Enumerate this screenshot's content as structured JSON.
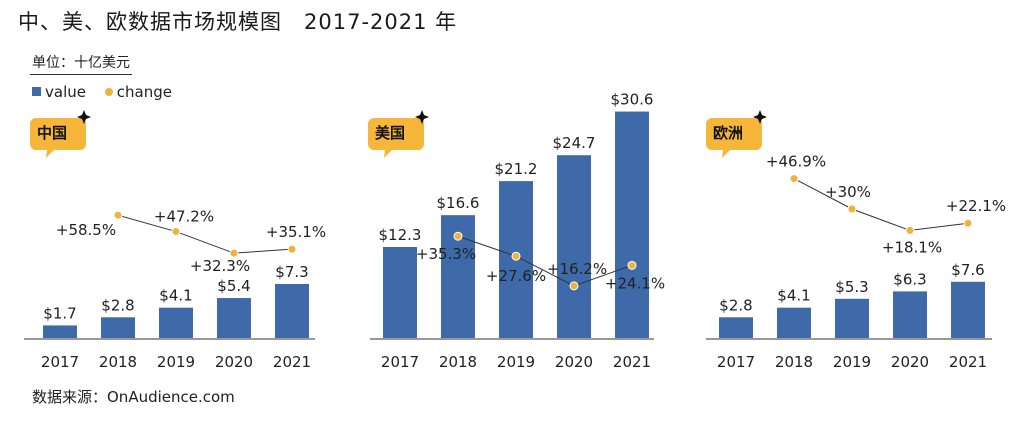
{
  "title": "中、美、欧数据市场规模图　2017-2021 年",
  "unit": "单位：十亿美元",
  "legend": {
    "value_label": "value",
    "change_label": "change"
  },
  "source": "数据来源：OnAudience.com",
  "colors": {
    "bar": "#3e6aa9",
    "dot": "#f0b23b",
    "badge": "#f5b63a",
    "line": "#333333"
  },
  "chart_data": [
    {
      "type": "bar",
      "badge": "中国",
      "categories": [
        "2017",
        "2018",
        "2019",
        "2020",
        "2021"
      ],
      "values": [
        1.7,
        2.8,
        4.1,
        5.4,
        7.3
      ],
      "value_labels": [
        "$1.7",
        "$2.8",
        "$4.1",
        "$5.4",
        "$7.3"
      ],
      "change": {
        "x": [
          "2018",
          "2019",
          "2020",
          "2021"
        ],
        "values": [
          58.5,
          47.2,
          32.3,
          35.1
        ],
        "labels": [
          "+58.5%",
          "+47.2%",
          "+32.3%",
          "+35.1%"
        ]
      }
    },
    {
      "type": "bar",
      "badge": "美国",
      "categories": [
        "2017",
        "2018",
        "2019",
        "2020",
        "2021"
      ],
      "values": [
        12.3,
        16.6,
        21.2,
        24.7,
        30.6
      ],
      "value_labels": [
        "$12.3",
        "$16.6",
        "$21.2",
        "$24.7",
        "$30.6"
      ],
      "change": {
        "x": [
          "2018",
          "2019",
          "2020",
          "2021"
        ],
        "values": [
          35.3,
          27.6,
          16.2,
          24.1
        ],
        "labels": [
          "+35.3%",
          "+27.6%",
          "+16.2%",
          "+24.1%"
        ]
      }
    },
    {
      "type": "bar",
      "badge": "欧洲",
      "categories": [
        "2017",
        "2018",
        "2019",
        "2020",
        "2021"
      ],
      "values": [
        2.8,
        4.1,
        5.3,
        6.3,
        7.6
      ],
      "value_labels": [
        "$2.8",
        "$4.1",
        "$5.3",
        "$6.3",
        "$7.6"
      ],
      "change": {
        "x": [
          "2018",
          "2019",
          "2020",
          "2021"
        ],
        "values": [
          46.9,
          30,
          18.1,
          22.1
        ],
        "labels": [
          "+46.9%",
          "+30%",
          "+18.1%",
          "+22.1%"
        ]
      }
    }
  ]
}
